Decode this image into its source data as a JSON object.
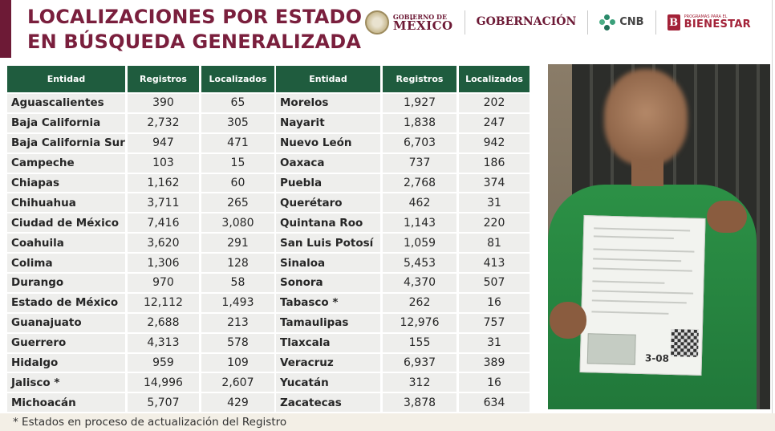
{
  "header": {
    "title_line1": "LOCALIZACIONES POR ESTADO",
    "title_line2": "EN BÚSQUEDA GENERALIZADA"
  },
  "logos": {
    "gobierno_small": "GOBIERNO DE",
    "gobierno_big": "MÉXICO",
    "gobernacion_big": "GOBERNACIÓN",
    "cnb": "CNB",
    "bienestar_small": "PROGRAMAS PARA EL",
    "bienestar_big": "BIENESTAR"
  },
  "colors": {
    "title": "#7a1f3d",
    "header_green": "#1f5c3e",
    "row_bg": "#eeeeec",
    "accent": "#6d1a36"
  },
  "table_left": {
    "headers": [
      "Entidad",
      "Registros",
      "Localizados"
    ],
    "rows": [
      [
        "Aguascalientes",
        "390",
        "65"
      ],
      [
        "Baja California",
        "2,732",
        "305"
      ],
      [
        "Baja California Sur",
        "947",
        "471"
      ],
      [
        "Campeche",
        "103",
        "15"
      ],
      [
        "Chiapas",
        "1,162",
        "60"
      ],
      [
        "Chihuahua",
        "3,711",
        "265"
      ],
      [
        "Ciudad de México",
        "7,416",
        "3,080"
      ],
      [
        "Coahuila",
        "3,620",
        "291"
      ],
      [
        "Colima",
        "1,306",
        "128"
      ],
      [
        "Durango",
        "970",
        "58"
      ],
      [
        "Estado de México",
        "12,112",
        "1,493"
      ],
      [
        "Guanajuato",
        "2,688",
        "213"
      ],
      [
        "Guerrero",
        "4,313",
        "578"
      ],
      [
        "Hidalgo",
        "959",
        "109"
      ],
      [
        "Jalisco *",
        "14,996",
        "2,607"
      ],
      [
        "Michoacán",
        "5,707",
        "429"
      ]
    ]
  },
  "table_right": {
    "headers": [
      "Entidad",
      "Registros",
      "Localizados"
    ],
    "rows": [
      [
        "Morelos",
        "1,927",
        "202"
      ],
      [
        "Nayarit",
        "1,838",
        "247"
      ],
      [
        "Nuevo León",
        "6,703",
        "942"
      ],
      [
        "Oaxaca",
        "737",
        "186"
      ],
      [
        "Puebla",
        "2,768",
        "374"
      ],
      [
        "Querétaro",
        "462",
        "31"
      ],
      [
        "Quintana Roo",
        "1,143",
        "220"
      ],
      [
        "San Luis Potosí",
        "1,059",
        "81"
      ],
      [
        "Sinaloa",
        "5,453",
        "413"
      ],
      [
        "Sonora",
        "4,370",
        "507"
      ],
      [
        "Tabasco *",
        "262",
        "16"
      ],
      [
        "Tamaulipas",
        "12,976",
        "757"
      ],
      [
        "Tlaxcala",
        "155",
        "31"
      ],
      [
        "Veracruz",
        "6,937",
        "389"
      ],
      [
        "Yucatán",
        "312",
        "16"
      ],
      [
        "Zacatecas",
        "3,878",
        "634"
      ]
    ]
  },
  "photo": {
    "folio_fragment": "3-08"
  },
  "footnote": "* Estados en proceso de actualización del Registro"
}
